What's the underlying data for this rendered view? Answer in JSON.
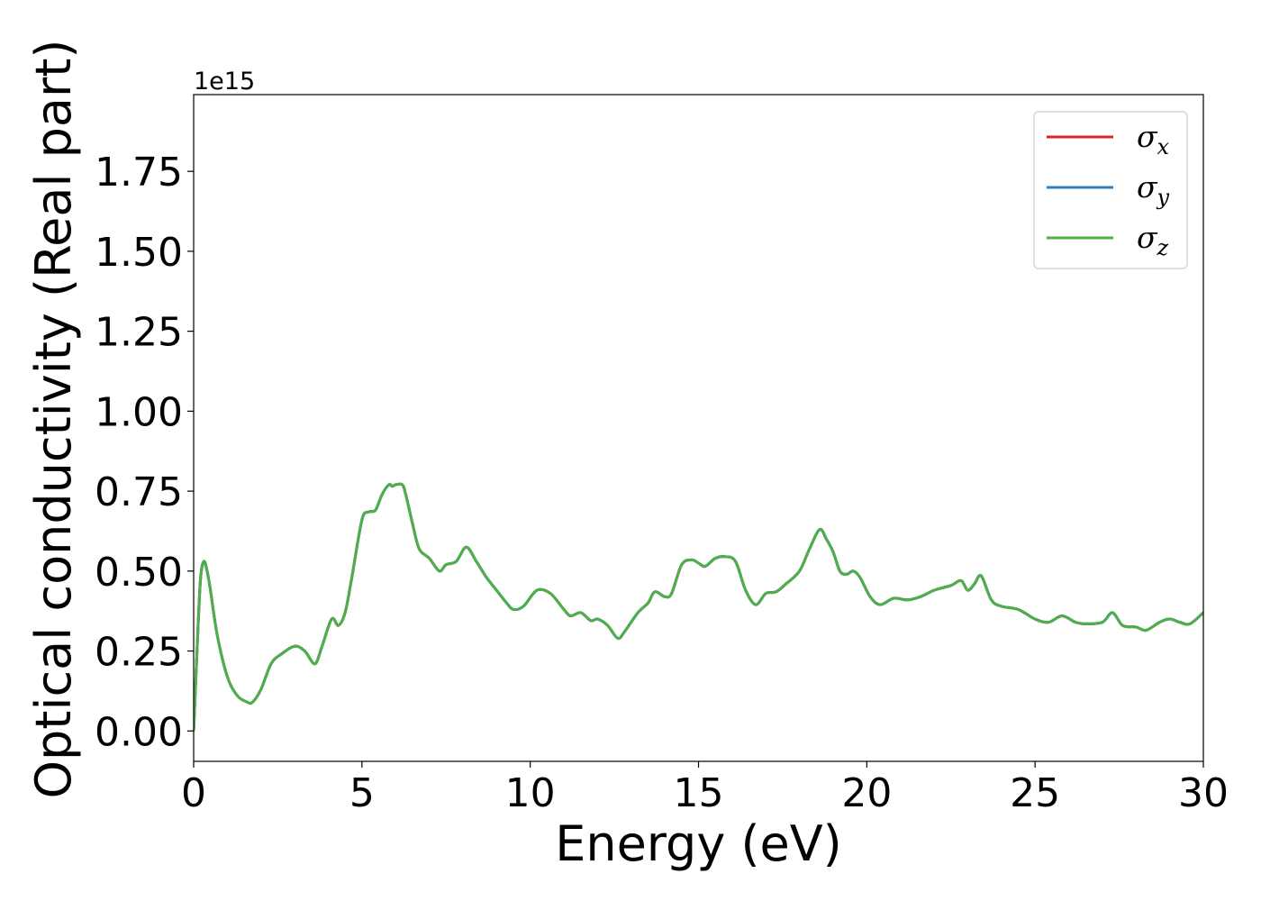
{
  "chart_data": {
    "type": "line",
    "xlabel": "Energy (eV)",
    "ylabel": "Optical conductivity (Real part)",
    "y_offset_text": "1e15",
    "xlim": [
      0,
      30
    ],
    "ylim": [
      -0.095,
      1.99
    ],
    "y_scale_note": "values in units of 1e15",
    "x_ticks": [
      0,
      5,
      10,
      15,
      20,
      25,
      30
    ],
    "x_tick_labels": [
      "0",
      "5",
      "10",
      "15",
      "20",
      "25",
      "30"
    ],
    "y_ticks": [
      0,
      0.25,
      0.5,
      0.75,
      1.0,
      1.25,
      1.5,
      1.75
    ],
    "y_tick_labels": [
      "0.00",
      "0.25",
      "0.50",
      "0.75",
      "1.00",
      "1.25",
      "1.50",
      "1.75"
    ],
    "grid": false,
    "legend_position": "upper-right",
    "x": [
      0,
      0.1,
      0.2,
      0.3,
      0.4,
      0.5,
      0.7,
      1.0,
      1.3,
      1.6,
      1.75,
      2.0,
      2.3,
      2.6,
      3.0,
      3.3,
      3.6,
      3.8,
      4.1,
      4.3,
      4.5,
      4.7,
      5.0,
      5.2,
      5.4,
      5.6,
      5.8,
      5.9,
      6.0,
      6.2,
      6.3,
      6.5,
      6.7,
      7.0,
      7.3,
      7.5,
      7.8,
      8.1,
      8.4,
      8.7,
      9.0,
      9.3,
      9.5,
      9.8,
      10.2,
      10.6,
      11.0,
      11.2,
      11.5,
      11.8,
      12.0,
      12.3,
      12.6,
      12.8,
      13.2,
      13.5,
      13.7,
      14.0,
      14.2,
      14.5,
      14.8,
      15.0,
      15.2,
      15.5,
      15.8,
      16.1,
      16.4,
      16.7,
      17.0,
      17.3,
      17.6,
      18.0,
      18.3,
      18.6,
      18.8,
      19.0,
      19.2,
      19.4,
      19.6,
      19.8,
      20.1,
      20.4,
      20.8,
      21.2,
      21.6,
      22.0,
      22.5,
      22.8,
      23.0,
      23.2,
      23.4,
      23.7,
      24.0,
      24.5,
      25.0,
      25.4,
      25.8,
      26.2,
      26.5,
      27.0,
      27.3,
      27.6,
      28.0,
      28.3,
      28.7,
      29.0,
      29.3,
      29.6,
      30.0
    ],
    "series": [
      {
        "name": "σx",
        "color": "#d62728",
        "values": [
          0.0,
          0.25,
          0.47,
          0.53,
          0.5,
          0.44,
          0.3,
          0.17,
          0.11,
          0.09,
          0.09,
          0.13,
          0.21,
          0.24,
          0.265,
          0.25,
          0.21,
          0.26,
          0.35,
          0.33,
          0.37,
          0.48,
          0.66,
          0.685,
          0.69,
          0.74,
          0.77,
          0.765,
          0.77,
          0.77,
          0.74,
          0.65,
          0.57,
          0.54,
          0.5,
          0.52,
          0.53,
          0.575,
          0.53,
          0.48,
          0.44,
          0.4,
          0.38,
          0.39,
          0.44,
          0.43,
          0.38,
          0.36,
          0.37,
          0.345,
          0.35,
          0.33,
          0.29,
          0.31,
          0.37,
          0.4,
          0.435,
          0.42,
          0.43,
          0.52,
          0.535,
          0.525,
          0.515,
          0.54,
          0.545,
          0.53,
          0.44,
          0.395,
          0.43,
          0.435,
          0.46,
          0.5,
          0.57,
          0.63,
          0.6,
          0.56,
          0.5,
          0.49,
          0.5,
          0.48,
          0.42,
          0.395,
          0.415,
          0.41,
          0.42,
          0.44,
          0.455,
          0.47,
          0.44,
          0.46,
          0.485,
          0.41,
          0.39,
          0.38,
          0.35,
          0.34,
          0.36,
          0.34,
          0.335,
          0.34,
          0.37,
          0.33,
          0.325,
          0.315,
          0.34,
          0.35,
          0.34,
          0.335,
          0.37
        ]
      },
      {
        "name": "σy",
        "color": "#377eb8",
        "values": [
          0.0,
          0.25,
          0.47,
          0.53,
          0.5,
          0.44,
          0.3,
          0.17,
          0.11,
          0.09,
          0.09,
          0.13,
          0.21,
          0.24,
          0.265,
          0.25,
          0.21,
          0.26,
          0.35,
          0.33,
          0.37,
          0.48,
          0.66,
          0.685,
          0.69,
          0.74,
          0.77,
          0.765,
          0.77,
          0.77,
          0.74,
          0.65,
          0.57,
          0.54,
          0.5,
          0.52,
          0.53,
          0.575,
          0.53,
          0.48,
          0.44,
          0.4,
          0.38,
          0.39,
          0.44,
          0.43,
          0.38,
          0.36,
          0.37,
          0.345,
          0.35,
          0.33,
          0.29,
          0.31,
          0.37,
          0.4,
          0.435,
          0.42,
          0.43,
          0.52,
          0.535,
          0.525,
          0.515,
          0.54,
          0.545,
          0.53,
          0.44,
          0.395,
          0.43,
          0.435,
          0.46,
          0.5,
          0.57,
          0.63,
          0.6,
          0.56,
          0.5,
          0.49,
          0.5,
          0.48,
          0.42,
          0.395,
          0.415,
          0.41,
          0.42,
          0.44,
          0.455,
          0.47,
          0.44,
          0.46,
          0.485,
          0.41,
          0.39,
          0.38,
          0.35,
          0.34,
          0.36,
          0.34,
          0.335,
          0.34,
          0.37,
          0.33,
          0.325,
          0.315,
          0.34,
          0.35,
          0.34,
          0.335,
          0.37
        ]
      },
      {
        "name": "σz",
        "color": "#4daf4a",
        "values": [
          0.0,
          0.25,
          0.47,
          0.53,
          0.5,
          0.44,
          0.3,
          0.17,
          0.11,
          0.09,
          0.09,
          0.13,
          0.21,
          0.24,
          0.265,
          0.25,
          0.21,
          0.26,
          0.35,
          0.33,
          0.37,
          0.48,
          0.66,
          0.685,
          0.69,
          0.74,
          0.77,
          0.765,
          0.77,
          0.77,
          0.74,
          0.65,
          0.57,
          0.54,
          0.5,
          0.52,
          0.53,
          0.575,
          0.53,
          0.48,
          0.44,
          0.4,
          0.38,
          0.39,
          0.44,
          0.43,
          0.38,
          0.36,
          0.37,
          0.345,
          0.35,
          0.33,
          0.29,
          0.31,
          0.37,
          0.4,
          0.435,
          0.42,
          0.43,
          0.52,
          0.535,
          0.525,
          0.515,
          0.54,
          0.545,
          0.53,
          0.44,
          0.395,
          0.43,
          0.435,
          0.46,
          0.5,
          0.57,
          0.63,
          0.6,
          0.56,
          0.5,
          0.49,
          0.5,
          0.48,
          0.42,
          0.395,
          0.415,
          0.41,
          0.42,
          0.44,
          0.455,
          0.47,
          0.44,
          0.46,
          0.485,
          0.41,
          0.39,
          0.38,
          0.35,
          0.34,
          0.36,
          0.34,
          0.335,
          0.34,
          0.37,
          0.33,
          0.325,
          0.315,
          0.34,
          0.35,
          0.34,
          0.335,
          0.37
        ]
      }
    ],
    "legend": [
      {
        "symbol": "σ",
        "subscript": "x",
        "color": "#d62728"
      },
      {
        "symbol": "σ",
        "subscript": "y",
        "color": "#377eb8"
      },
      {
        "symbol": "σ",
        "subscript": "z",
        "color": "#4daf4a"
      }
    ]
  }
}
